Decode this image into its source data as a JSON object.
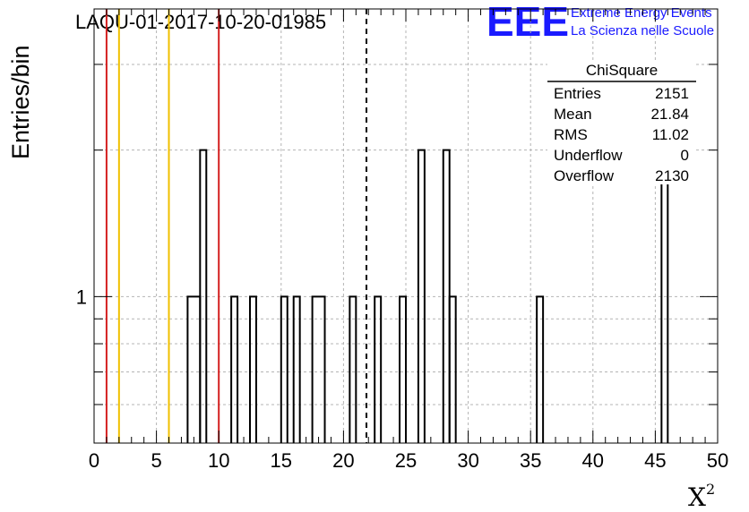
{
  "title": "LAQU-01-2017-10-20-01985",
  "logo": {
    "mark": "EEE",
    "line1": "Extreme Energy Events",
    "line2": "La Scienza nelle Scuole"
  },
  "chart_data": {
    "type": "histogram",
    "xlabel": "X",
    "xlabel_superscript": "2",
    "ylabel": "Entries/bin",
    "xlim": [
      0,
      50
    ],
    "ylim": [
      0.5,
      3.9
    ],
    "y_scale": "log",
    "grid": true,
    "bin_width": 0.5,
    "x_ticks": [
      "0",
      "5",
      "10",
      "15",
      "20",
      "25",
      "30",
      "35",
      "40",
      "45",
      "50"
    ],
    "y_ticks": [
      {
        "value": 1,
        "label": "1"
      }
    ],
    "bins": [
      {
        "x0": 7.5,
        "x1": 8.5,
        "value": 1
      },
      {
        "x0": 8.5,
        "x1": 9.0,
        "value": 2
      },
      {
        "x0": 11.0,
        "x1": 11.5,
        "value": 1
      },
      {
        "x0": 12.5,
        "x1": 13.0,
        "value": 1
      },
      {
        "x0": 15.0,
        "x1": 15.5,
        "value": 1
      },
      {
        "x0": 16.0,
        "x1": 16.5,
        "value": 1
      },
      {
        "x0": 17.5,
        "x1": 18.5,
        "value": 1
      },
      {
        "x0": 20.5,
        "x1": 21.0,
        "value": 1
      },
      {
        "x0": 22.5,
        "x1": 23.0,
        "value": 1
      },
      {
        "x0": 24.5,
        "x1": 25.0,
        "value": 1
      },
      {
        "x0": 26.0,
        "x1": 26.5,
        "value": 2
      },
      {
        "x0": 28.0,
        "x1": 28.5,
        "value": 2
      },
      {
        "x0": 28.5,
        "x1": 29.0,
        "value": 1
      },
      {
        "x0": 35.5,
        "x1": 36.0,
        "value": 1
      },
      {
        "x0": 45.5,
        "x1": 46.0,
        "value": 2
      }
    ],
    "vertical_lines": [
      {
        "x": 1.0,
        "color": "#d42020",
        "style": "solid"
      },
      {
        "x": 2.0,
        "color": "#f0c000",
        "style": "solid"
      },
      {
        "x": 6.0,
        "color": "#f0c000",
        "style": "solid"
      },
      {
        "x": 10.0,
        "color": "#d42020",
        "style": "solid"
      },
      {
        "x": 21.84,
        "color": "#000000",
        "style": "dashed"
      }
    ],
    "stats_box": {
      "title": "ChiSquare",
      "rows": [
        {
          "label": "Entries",
          "value": "2151"
        },
        {
          "label": "Mean",
          "value": "21.84"
        },
        {
          "label": "RMS",
          "value": "11.02"
        },
        {
          "label": "Underflow",
          "value": "0"
        },
        {
          "label": "Overflow",
          "value": "2130"
        }
      ]
    }
  }
}
